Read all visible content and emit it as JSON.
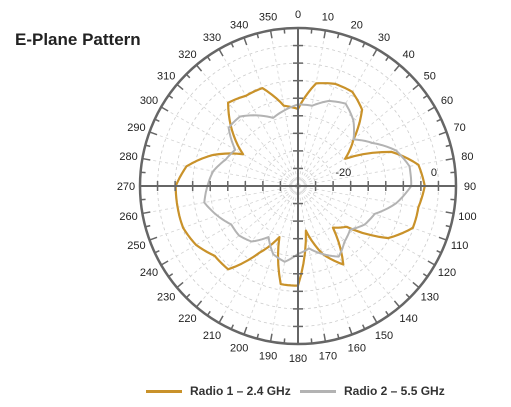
{
  "chart_data": {
    "type": "polar-line",
    "title": "E-Plane Pattern",
    "angle_labels": [
      "0",
      "10",
      "20",
      "30",
      "40",
      "50",
      "60",
      "70",
      "80",
      "90",
      "100",
      "110",
      "120",
      "130",
      "140",
      "150",
      "160",
      "170",
      "180",
      "190",
      "200",
      "210",
      "220",
      "230",
      "240",
      "250",
      "260",
      "270",
      "280",
      "290",
      "300",
      "310",
      "320",
      "330",
      "340",
      "350"
    ],
    "radial_labels": [
      "-20",
      "0"
    ],
    "grid": true,
    "legend": "bottom",
    "series": [
      {
        "name": "Radio 1 – 2.4 GHz",
        "color": "#c9922a",
        "angles": [
          0,
          10,
          20,
          30,
          40,
          50,
          60,
          70,
          80,
          90,
          100,
          110,
          120,
          130,
          140,
          150,
          160,
          170,
          180,
          190,
          200,
          210,
          220,
          230,
          240,
          250,
          260,
          270,
          280,
          290,
          300,
          310,
          320,
          330,
          340,
          350
        ],
        "values": [
          -13,
          -7,
          -6,
          -6,
          -8,
          -14,
          -18,
          -8,
          -3,
          -2,
          -3,
          -3,
          -7,
          -16,
          -18,
          -10,
          -14,
          -20,
          -8,
          -8,
          -18,
          -13,
          -6,
          -6,
          -4,
          -3,
          -3,
          -3,
          -5,
          -10,
          -16,
          -11,
          -6,
          -7,
          -7,
          -12
        ]
      },
      {
        "name": "Radio 2 – 5.5 GHz",
        "color": "#b3b3b3",
        "angles": [
          0,
          10,
          20,
          30,
          40,
          50,
          60,
          70,
          80,
          90,
          100,
          110,
          120,
          130,
          140,
          150,
          160,
          170,
          180,
          190,
          200,
          210,
          220,
          230,
          240,
          250,
          260,
          270,
          280,
          290,
          300,
          310,
          320,
          330,
          340,
          350
        ],
        "values": [
          -12,
          -12,
          -10,
          -9,
          -11,
          -14,
          -11,
          -7,
          -5,
          -5,
          -8,
          -12,
          -13,
          -15,
          -14,
          -12,
          -14,
          -16,
          -15,
          -13,
          -14,
          -17,
          -14,
          -13,
          -13,
          -11,
          -9,
          -10,
          -11,
          -13,
          -14,
          -10,
          -10,
          -12,
          -14,
          -13
        ]
      }
    ]
  }
}
